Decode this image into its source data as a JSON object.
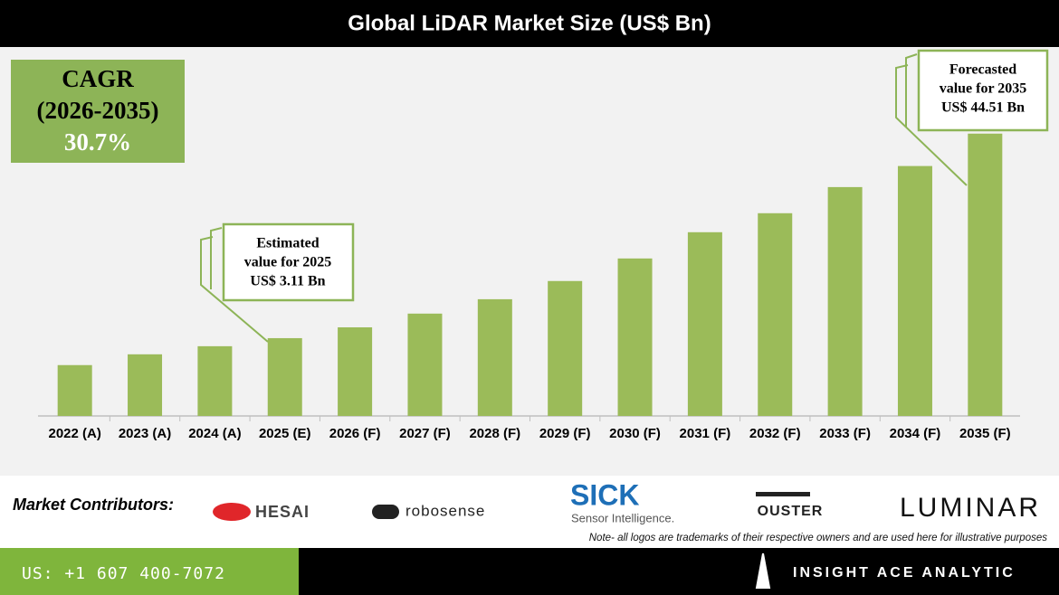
{
  "chart_data": {
    "type": "bar",
    "title": "Global LiDAR Market Size (US$ Bn)",
    "categories": [
      "2022 (A)",
      "2023 (A)",
      "2024 (A)",
      "2025 (E)",
      "2026 (F)",
      "2027 (F)",
      "2028 (F)",
      "2029 (F)",
      "2030 (F)",
      "2031 (F)",
      "2032 (F)",
      "2033 (F)",
      "2034 (F)",
      "2035 (F)"
    ],
    "values": [
      2.19,
      2.52,
      2.8,
      3.11,
      3.58,
      4.28,
      5.16,
      6.54,
      8.77,
      12.34,
      15.8,
      22.2,
      29.2,
      44.51
    ],
    "color": "#9bbb59",
    "log_scale": true,
    "ylim": [
      1.13,
      125
    ],
    "cagr_box": [
      "CAGR",
      "(2026-2035)",
      "30.7%"
    ],
    "annotations": [
      {
        "category": "2025 (E)",
        "lines": [
          "Estimated",
          "value for 2025",
          "US$ 3.11 Bn"
        ]
      },
      {
        "category": "2035 (F)",
        "lines": [
          "Forecasted",
          "value for 2035",
          "US$ 44.51 Bn"
        ]
      }
    ]
  },
  "contributors": {
    "label": "Market Contributors:",
    "logos": [
      "HESAI",
      "robosense",
      "SICK",
      "Sensor Intelligence.",
      "OUSTER",
      "LUMINAR"
    ],
    "note": "Note- all logos are trademarks of their respective owners and are used here for illustrative purposes"
  },
  "footer": {
    "phone": "US: +1 607 400-7072",
    "brand": "INSIGHT ACE ANALYTIC"
  }
}
